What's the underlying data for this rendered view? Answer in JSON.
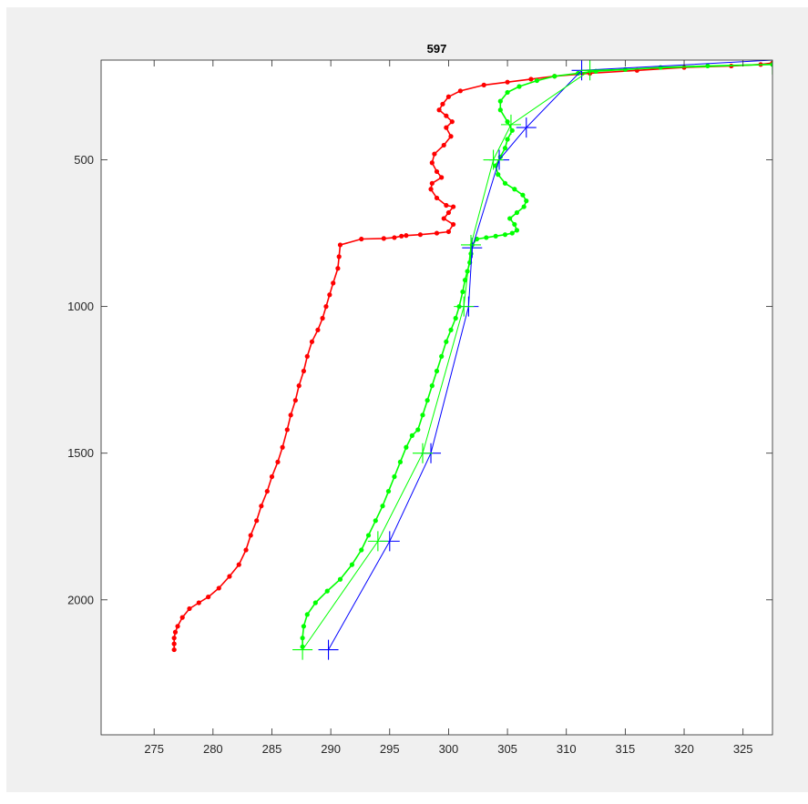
{
  "chart_data": {
    "type": "line",
    "title": "597",
    "xlabel": "",
    "ylabel": "",
    "xlim": [
      270.5,
      327.5
    ],
    "ylim": [
      2460,
      160
    ],
    "y_reversed": true,
    "grid": false,
    "xticks": [
      275,
      280,
      285,
      290,
      295,
      300,
      305,
      310,
      315,
      320,
      325
    ],
    "xtick_labels": [
      "275",
      "280",
      "285",
      "290",
      "295",
      "300",
      "305",
      "310",
      "315",
      "320",
      "325"
    ],
    "yticks": [
      500,
      1000,
      1500,
      2000
    ],
    "ytick_labels": [
      "500",
      "1000",
      "1500",
      "2000"
    ],
    "series": [
      {
        "color": "#ff0000",
        "style": "line-with-dots",
        "x": [
          327.5,
          326.5,
          324,
          320,
          316,
          312,
          309,
          307,
          305,
          303,
          301,
          300,
          299.5,
          299.2,
          299.8,
          300.3,
          299.8,
          300.2,
          299.6,
          298.8,
          298.6,
          299.0,
          299.4,
          298.6,
          298.5,
          299.0,
          299.8,
          300.4,
          300.0,
          299.6,
          300.4,
          300.0,
          299.0,
          297.6,
          296.4,
          296.0,
          295.4,
          294.5,
          292.6,
          290.8,
          290.7,
          290.6,
          290.2,
          289.9,
          289.6,
          289.3,
          288.9,
          288.4,
          288.0,
          287.7,
          287.3,
          287.0,
          286.6,
          286.3,
          285.9,
          285.5,
          285.0,
          284.6,
          284.1,
          283.7,
          283.2,
          282.8,
          282.2,
          281.4,
          280.5,
          279.6,
          278.8,
          278.0,
          277.4,
          277.0,
          276.8,
          276.7,
          276.7,
          276.7
        ],
        "y": [
          170,
          175,
          180,
          185,
          195,
          205,
          215,
          225,
          235,
          245,
          265,
          285,
          310,
          330,
          350,
          370,
          390,
          420,
          450,
          480,
          510,
          540,
          560,
          580,
          600,
          630,
          655,
          660,
          680,
          700,
          720,
          745,
          750,
          755,
          758,
          760,
          765,
          768,
          770,
          790,
          830,
          870,
          920,
          960,
          1000,
          1040,
          1080,
          1120,
          1170,
          1220,
          1270,
          1320,
          1370,
          1420,
          1480,
          1530,
          1580,
          1630,
          1680,
          1730,
          1780,
          1830,
          1880,
          1920,
          1960,
          1990,
          2010,
          2030,
          2060,
          2090,
          2110,
          2130,
          2150,
          2170
        ]
      },
      {
        "color": "#00ff00",
        "style": "line-with-dots",
        "x": [
          327.5,
          322,
          318,
          315,
          312.5,
          311,
          309,
          307.5,
          306,
          305,
          304.4,
          304.4,
          305.0,
          305.4,
          305.0,
          304.8,
          304.4,
          304.0,
          304.2,
          304.8,
          305.6,
          306.3,
          306.6,
          306.4,
          305.8,
          305.2,
          305.6,
          305.8,
          305.4,
          304.8,
          304.0,
          303.2,
          302.4,
          302.0,
          301.9,
          301.8,
          301.6,
          301.4,
          301.2,
          300.9,
          300.6,
          300.2,
          299.8,
          299.4,
          299.0,
          298.6,
          298.2,
          297.8,
          297.4,
          296.9,
          296.4,
          295.9,
          295.4,
          294.9,
          294.4,
          293.8,
          293.2,
          292.6,
          291.8,
          290.8,
          289.7,
          288.7,
          288.0,
          287.7,
          287.6,
          287.6
        ],
        "y": [
          175,
          180,
          185,
          192,
          198,
          205,
          215,
          230,
          250,
          270,
          300,
          330,
          370,
          400,
          430,
          460,
          490,
          520,
          550,
          580,
          600,
          620,
          640,
          660,
          680,
          700,
          720,
          740,
          750,
          755,
          760,
          765,
          770,
          790,
          820,
          850,
          880,
          910,
          950,
          1000,
          1040,
          1080,
          1120,
          1170,
          1220,
          1270,
          1320,
          1370,
          1420,
          1440,
          1480,
          1530,
          1580,
          1630,
          1680,
          1730,
          1780,
          1830,
          1880,
          1930,
          1970,
          2010,
          2050,
          2090,
          2130,
          2160
        ]
      },
      {
        "color": "#0000ff",
        "style": "line-with-plus-markers",
        "x": [
          327.5,
          311.3,
          306.6,
          304.3,
          302.0,
          301.7,
          298.5,
          295.0,
          289.8
        ],
        "y": [
          160,
          195,
          390,
          500,
          800,
          1000,
          1500,
          1800,
          2170
        ]
      },
      {
        "color": "#00ff00",
        "style": "line-with-plus-markers",
        "x": [
          327.5,
          312.0,
          305.3,
          303.8,
          301.9,
          301.3,
          297.8,
          294.0,
          287.6
        ],
        "y": [
          175,
          195,
          380,
          500,
          790,
          1000,
          1500,
          1800,
          2170
        ]
      }
    ]
  }
}
